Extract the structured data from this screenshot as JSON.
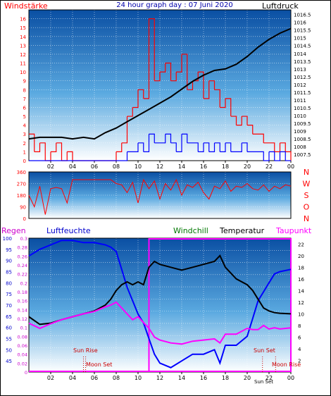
{
  "header": {
    "left_label": "Windstärke",
    "title": "24 hour graph day : 07 Juni 2020",
    "right_label": "Luftdruck"
  },
  "legend": {
    "rain": "Regen",
    "humidity": "Luftfeuchte",
    "windchill": "Windchill",
    "temperature": "Temperatur",
    "dewpoint": "Taupunkt"
  },
  "annotations": {
    "sun_rise": "Sun Rise",
    "moon_set": "Moon Set",
    "sun_set": "Sun Set",
    "moon_rise": "Moon Rise",
    "sun_set_short": "Sun Set"
  },
  "colors": {
    "background_top": "#0a4fa3",
    "background_bottom": "#ffffff",
    "wind_gust": "#ff0000",
    "wind_avg": "#0000ff",
    "pressure": "#000000",
    "direction": "#ff0000",
    "humidity": "#0000ff",
    "temperature": "#000000",
    "dewpoint": "#ff00ff",
    "rain_box": "#ff00ff"
  },
  "chart_data": [
    {
      "type": "line",
      "id": "wind-pressure",
      "x_ticks": [
        "02",
        "04",
        "06",
        "08",
        "10",
        "12",
        "14",
        "16",
        "18",
        "20",
        "22",
        "00"
      ],
      "y_left_label": "Windstärke",
      "y_left_ticks": [
        0,
        1,
        2,
        3,
        4,
        5,
        6,
        7,
        8,
        9,
        10,
        11,
        12,
        13,
        14,
        15,
        16
      ],
      "ylim_left": [
        0,
        17
      ],
      "y_right_label": "Luftdruck",
      "y_right_ticks": [
        "1007.5",
        "1008",
        "1008.5",
        "1009",
        "1009.5",
        "1010",
        "1010.5",
        "1011",
        "1011.5",
        "1012",
        "1012.5",
        "1013",
        "1013.5",
        "1014",
        "1014.5",
        "1015",
        "1015.5",
        "1016",
        "1016.5"
      ],
      "ylim_right": [
        1007.1,
        1016.8
      ],
      "pressure": {
        "x": [
          0,
          1,
          2,
          3,
          4,
          5,
          6,
          7,
          8,
          9,
          10,
          11,
          12,
          13,
          14,
          15,
          16,
          17,
          18,
          19,
          20,
          21,
          22,
          23,
          24
        ],
        "y": [
          1008.5,
          1008.6,
          1008.6,
          1008.6,
          1008.5,
          1008.6,
          1008.5,
          1008.9,
          1009.2,
          1009.6,
          1010.0,
          1010.4,
          1010.8,
          1011.2,
          1011.7,
          1012.2,
          1012.6,
          1012.9,
          1013.0,
          1013.3,
          1013.8,
          1014.4,
          1014.9,
          1015.3,
          1015.6
        ]
      },
      "gust": {
        "x": [
          0,
          0.5,
          1,
          1.5,
          2,
          2.5,
          3,
          3.5,
          4,
          4.5,
          5,
          5.5,
          6,
          6.5,
          7,
          7.5,
          8,
          8.5,
          9,
          9.5,
          10,
          10.5,
          11,
          11.5,
          12,
          12.5,
          13,
          13.5,
          14,
          14.5,
          15,
          15.5,
          16,
          16.5,
          17,
          17.5,
          18,
          18.5,
          19,
          19.5,
          20,
          20.5,
          21,
          21.5,
          22,
          22.5,
          23,
          23.5,
          24
        ],
        "y": [
          3,
          1,
          2,
          0,
          1,
          2,
          0,
          1,
          0,
          0,
          0,
          0,
          0,
          0,
          0,
          0,
          1,
          2,
          5,
          6,
          8,
          7,
          16,
          9,
          10,
          11,
          9,
          10,
          12,
          8,
          9,
          10,
          7,
          9,
          8,
          6,
          7,
          5,
          4,
          5,
          4,
          3,
          3,
          2,
          2,
          1,
          2,
          1,
          0
        ]
      },
      "average": {
        "x": [
          0,
          0.5,
          1,
          1.5,
          2,
          2.5,
          3,
          3.5,
          4,
          4.5,
          5,
          5.5,
          6,
          6.5,
          7,
          7.5,
          8,
          8.5,
          9,
          9.5,
          10,
          10.5,
          11,
          11.5,
          12,
          12.5,
          13,
          13.5,
          14,
          14.5,
          15,
          15.5,
          16,
          16.5,
          17,
          17.5,
          18,
          18.5,
          19,
          19.5,
          20,
          20.5,
          21,
          21.5,
          22,
          22.5,
          23,
          23.5,
          24
        ],
        "y": [
          0,
          0,
          0,
          0,
          0,
          0,
          0,
          0,
          0,
          0,
          0,
          0,
          0,
          0,
          0,
          0,
          0,
          0,
          1,
          1,
          2,
          1,
          3,
          2,
          2,
          3,
          2,
          1,
          3,
          2,
          2,
          1,
          2,
          1,
          2,
          1,
          2,
          1,
          1,
          2,
          1,
          1,
          1,
          0,
          1,
          0,
          1,
          0,
          0
        ]
      }
    },
    {
      "type": "line",
      "id": "wind-direction",
      "y_left_ticks": [
        0,
        90,
        180,
        270,
        360
      ],
      "ylim": [
        0,
        360
      ],
      "y_right_ticks": [
        "N",
        "W",
        "S",
        "O",
        "N"
      ],
      "direction": {
        "x": [
          0,
          0.5,
          1,
          1.5,
          2,
          2.5,
          3,
          3.5,
          4,
          4.5,
          5,
          5.5,
          6,
          6.5,
          7,
          7.5,
          8,
          8.5,
          9,
          9.5,
          10,
          10.5,
          11,
          11.5,
          12,
          12.5,
          13,
          13.5,
          14,
          14.5,
          15,
          15.5,
          16,
          16.5,
          17,
          17.5,
          18,
          18.5,
          19,
          19.5,
          20,
          20.5,
          21,
          21.5,
          22,
          22.5,
          23,
          23.5,
          24
        ],
        "y": [
          180,
          90,
          250,
          30,
          230,
          240,
          230,
          120,
          300,
          300,
          300,
          300,
          300,
          300,
          300,
          300,
          270,
          260,
          200,
          280,
          120,
          300,
          230,
          290,
          150,
          270,
          220,
          300,
          180,
          260,
          240,
          280,
          200,
          150,
          250,
          230,
          290,
          210,
          250,
          240,
          270,
          230,
          220,
          260,
          210,
          250,
          230,
          260,
          250
        ]
      }
    },
    {
      "type": "line",
      "id": "temp-humidity",
      "y_left_label": "Regen",
      "y_left_ticks": [
        "0",
        "0.02",
        "0.04",
        "0.06",
        "0.08",
        "0.1",
        "0.12",
        "0.14",
        "0.16",
        "0.18",
        "0.2",
        "0.22",
        "0.24",
        "0.26",
        "0.28",
        "0.3"
      ],
      "y_humidity_label": "Luftfeuchte",
      "y_humidity_ticks": [
        45,
        50,
        55,
        60,
        65,
        70,
        75,
        80,
        85,
        90,
        95,
        100
      ],
      "ylim_humidity": [
        40,
        100
      ],
      "y_right_label": "Taupunkt",
      "y_right_ticks": [
        2,
        4,
        6,
        8,
        10,
        12,
        14,
        16,
        18,
        20,
        22
      ],
      "ylim_temp": [
        0,
        23
      ],
      "humidity": {
        "x": [
          0,
          1,
          2,
          3,
          4,
          5,
          6,
          7,
          7.5,
          8,
          8.5,
          9,
          9.5,
          10,
          10.5,
          11,
          11.5,
          12,
          13,
          14,
          15,
          16,
          17,
          17.5,
          18,
          19,
          20,
          20.5,
          21,
          21.5,
          22,
          22.5,
          23,
          24
        ],
        "y": [
          92,
          95,
          97,
          99,
          99,
          98,
          98,
          97,
          96,
          94,
          86,
          78,
          72,
          66,
          62,
          55,
          48,
          44,
          42,
          45,
          48,
          48,
          50,
          44,
          52,
          52,
          56,
          64,
          72,
          76,
          80,
          84,
          85,
          86
        ]
      },
      "temperature": {
        "x": [
          0,
          1,
          2,
          3,
          4,
          5,
          6,
          7,
          7.5,
          8,
          8.5,
          9,
          9.5,
          10,
          10.5,
          11,
          11.5,
          12,
          13,
          14,
          15,
          16,
          17,
          17.5,
          18,
          19,
          20,
          20.5,
          21,
          21.5,
          22,
          22.5,
          23,
          24
        ],
        "y": [
          9.5,
          8.2,
          8.4,
          9.0,
          9.5,
          10.0,
          10.5,
          11.5,
          12.5,
          14,
          15,
          15.5,
          15,
          15.5,
          15,
          18,
          19,
          18.5,
          18,
          17.5,
          18,
          18.5,
          19,
          20,
          18,
          16,
          15,
          14,
          12.5,
          11,
          10.5,
          10.2,
          10.1,
          10.0
        ]
      },
      "dewpoint": {
        "x": [
          0,
          1,
          2,
          3,
          4,
          5,
          6,
          7,
          7.5,
          8,
          8.5,
          9,
          9.5,
          10,
          10.5,
          11,
          11.5,
          12,
          13,
          14,
          15,
          16,
          17,
          17.5,
          18,
          19,
          20,
          20.5,
          21,
          21.5,
          22,
          22.5,
          23,
          24
        ],
        "y": [
          8.4,
          7.5,
          8.3,
          9.0,
          9.5,
          10,
          10.4,
          11.2,
          11.5,
          12,
          11,
          10,
          9,
          9.5,
          8.5,
          7.5,
          6.0,
          5.5,
          5,
          4.8,
          5.3,
          5.5,
          5.7,
          5.0,
          6.5,
          6.5,
          7.5,
          7.3,
          7.3,
          8.0,
          7.4,
          7.6,
          7.4,
          7.6
        ]
      },
      "sun_rise_hour": 5.0,
      "moon_set_hour": 5.2,
      "sun_set_hour": 21.4,
      "moon_rise_hour": 22.6,
      "rain_box_start_hour": 11.0,
      "rain_box_end_hour": 24.0
    }
  ]
}
